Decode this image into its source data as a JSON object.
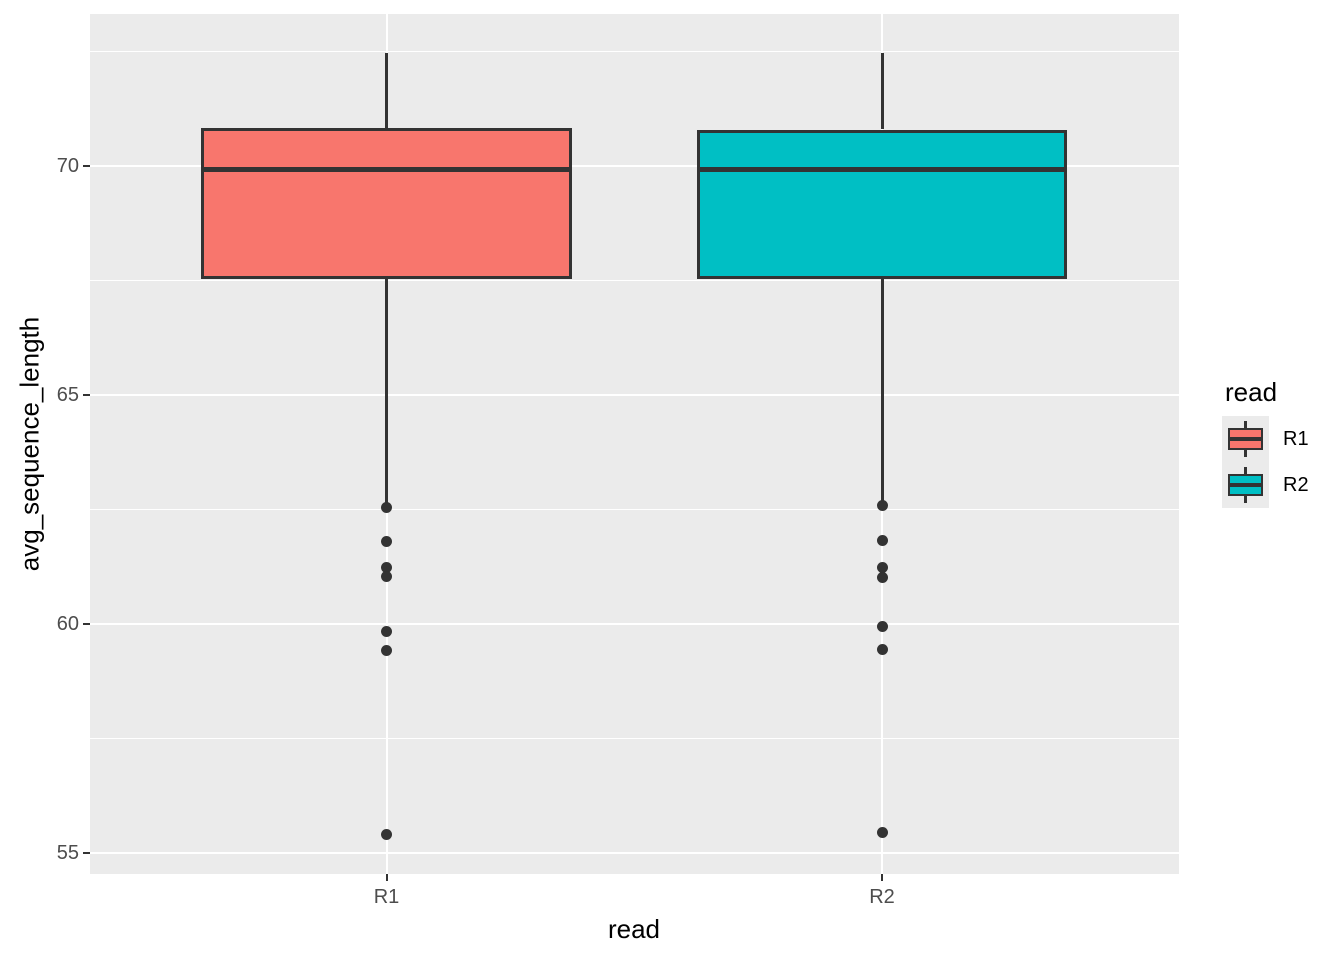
{
  "figure": {
    "background": "#FFFFFF",
    "panel_background": "#EBEBEB",
    "gridline_color": "#FFFFFF",
    "geom_outline_color": "#333333",
    "tick_label_color": "#4D4D4D",
    "axis_title_color": "#000000"
  },
  "axes": {
    "x_title": "read",
    "y_title": "avg_sequence_length",
    "x_tick_labels": [
      "R1",
      "R2"
    ],
    "y_tick_labels": [
      "55",
      "60",
      "65",
      "70"
    ]
  },
  "legend": {
    "title": "read",
    "position": "right",
    "items": [
      {
        "label": "R1",
        "color": "#F8766D"
      },
      {
        "label": "R2",
        "color": "#00BFC4"
      }
    ]
  },
  "chart_data": {
    "type": "boxplot",
    "title": "",
    "xlabel": "read",
    "ylabel": "avg_sequence_length",
    "categories": [
      "R1",
      "R2"
    ],
    "ylim": [
      54.55,
      73.32
    ],
    "y_major_ticks": [
      55,
      60,
      65,
      70
    ],
    "y_minor_gridlines": [
      57.5,
      62.5,
      67.5,
      72.5
    ],
    "grid": "on",
    "legend_position": "right",
    "series": [
      {
        "name": "R1",
        "color": "#F8766D",
        "whisker_high": 72.46,
        "q3": 70.84,
        "median": 69.92,
        "q1": 67.54,
        "whisker_low": 62.64,
        "outliers": [
          62.55,
          61.8,
          61.25,
          61.04,
          59.85,
          59.42,
          55.42
        ]
      },
      {
        "name": "R2",
        "color": "#00BFC4",
        "whisker_high": 72.46,
        "q3": 70.8,
        "median": 69.92,
        "q1": 67.54,
        "whisker_low": 62.64,
        "outliers": [
          62.6,
          61.83,
          61.25,
          61.03,
          59.95,
          59.45,
          55.45
        ]
      }
    ]
  }
}
